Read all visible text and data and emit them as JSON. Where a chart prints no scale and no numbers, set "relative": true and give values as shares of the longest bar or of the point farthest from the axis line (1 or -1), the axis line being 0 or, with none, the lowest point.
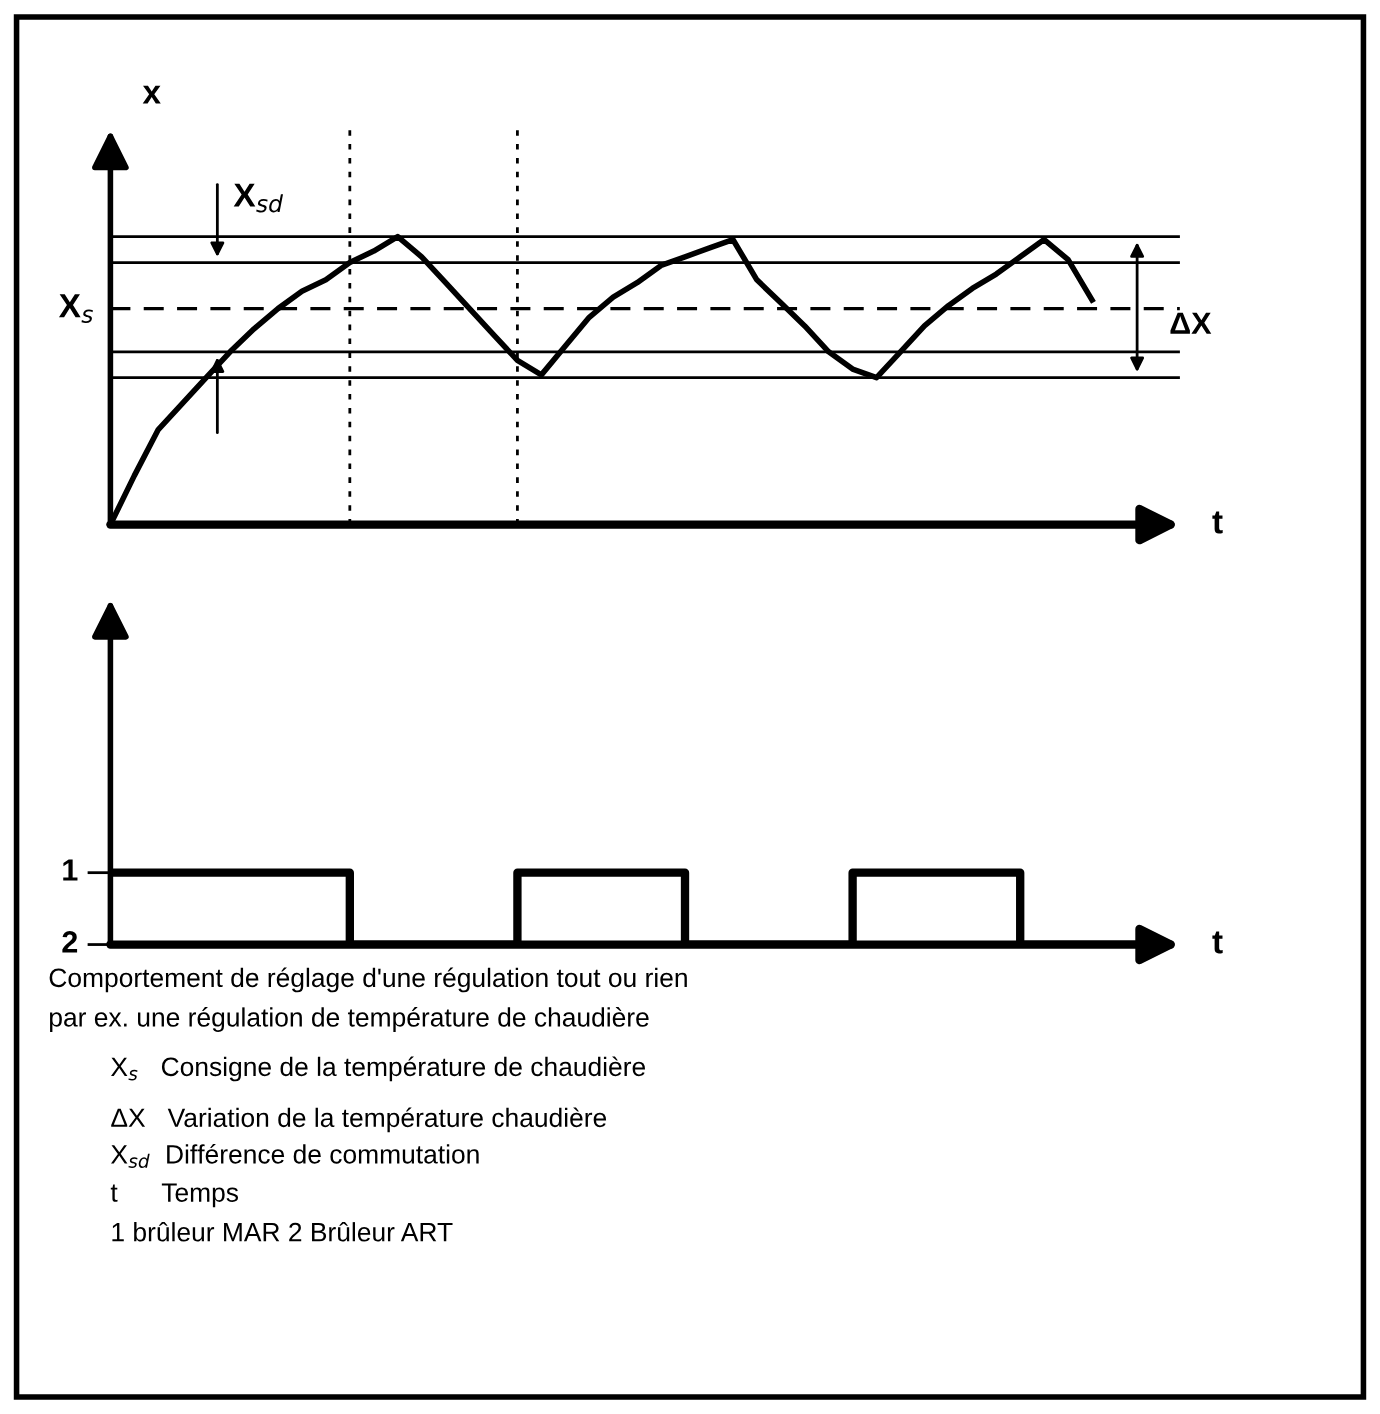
{
  "chart_data": [
    {
      "type": "line",
      "relative": true,
      "ylabel": "x",
      "xlabel": "t",
      "color": "#000000",
      "categories": [
        null,
        null,
        null,
        null,
        null,
        null,
        null,
        null,
        null,
        null,
        null,
        null,
        null,
        null,
        null,
        null,
        null,
        null,
        null,
        null,
        null,
        null,
        null,
        null,
        null,
        null,
        null,
        null,
        null,
        null,
        null,
        null,
        null,
        null,
        null,
        null,
        null,
        null,
        null,
        null,
        null,
        null,
        null,
        null,
        null
      ],
      "values": [
        0,
        0.17,
        0.33,
        0.42,
        0.51,
        0.6,
        0.68,
        0.75,
        0.81,
        0.85,
        0.91,
        0.95,
        1.0,
        0.93,
        0.84,
        0.75,
        0.66,
        0.57,
        0.52,
        0.62,
        0.72,
        0.79,
        0.84,
        0.9,
        0.93,
        0.96,
        0.99,
        0.85,
        0.77,
        0.69,
        0.6,
        0.54,
        0.51,
        0.6,
        0.69,
        0.76,
        0.82,
        0.87,
        0.93,
        0.99,
        0.92,
        0.78,
        null,
        null,
        null
      ],
      "ref_lines": [
        {
          "axis": "y",
          "value": 0.75,
          "label": "X$_{s}$",
          "line_style": "dashed"
        },
        {
          "axis": "y",
          "value": 0.91,
          "line_style": "solid"
        },
        {
          "axis": "y",
          "value": 0.6,
          "line_style": "solid"
        },
        {
          "axis": "y",
          "value": 1.0,
          "line_style": "solid"
        },
        {
          "axis": "y",
          "value": 0.51,
          "line_style": "solid"
        }
      ],
      "annotations": [
        "X$_{sd}$",
        "ΔX"
      ]
    },
    {
      "type": "step",
      "xlabel": "t",
      "color": "#000000",
      "categories": [
        null,
        null,
        null,
        null,
        null,
        null,
        null,
        null,
        null,
        null,
        null,
        null,
        null,
        null,
        null,
        null,
        null,
        null,
        null,
        null,
        null,
        null,
        null,
        null,
        null,
        null,
        null,
        null,
        null,
        null,
        null,
        null,
        null,
        null,
        null,
        null,
        null,
        null,
        null,
        null,
        null,
        null,
        null,
        null,
        null
      ],
      "values": [
        1,
        1,
        1,
        1,
        1,
        1,
        1,
        1,
        1,
        1,
        0,
        0,
        0,
        0,
        0,
        0,
        0,
        1,
        1,
        1,
        1,
        1,
        1,
        1,
        0,
        0,
        0,
        0,
        0,
        0,
        0,
        1,
        1,
        1,
        1,
        1,
        1,
        1,
        0,
        0,
        0,
        0,
        0,
        0,
        0
      ],
      "relative": true,
      "annotations": [
        "1",
        "2",
        "Comportement de réglage d'une régulation tout ou rien",
        "par ex. une régulation de température de chaudière",
        "X$_{s}$   Consigne de la température de chaudière",
        "ΔX   Variation de la température chaudière",
        "X$_{sd}$  Différence de commutation",
        "t      Temps",
        "1 brûleur MAR 2 Brûleur ART"
      ]
    }
  ]
}
